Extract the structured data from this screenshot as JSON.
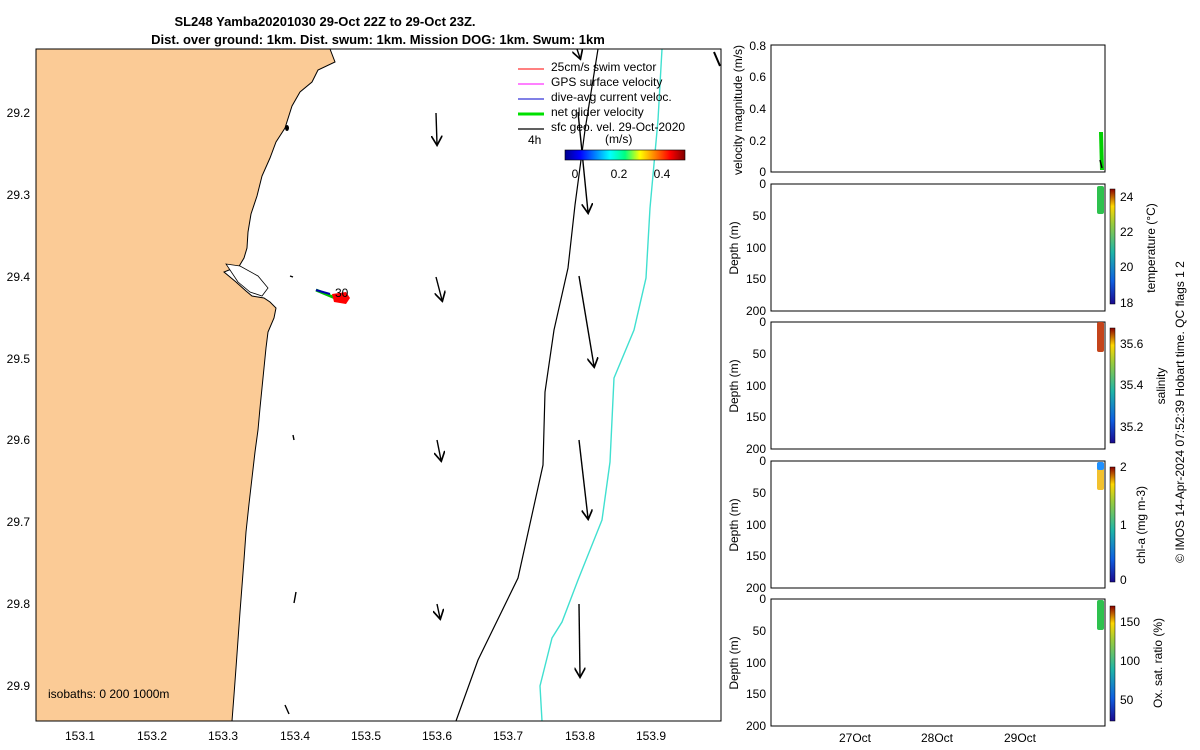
{
  "chart_data": {
    "type": "scatter",
    "title_line1": "SL248 Yamba20201030 29-Oct 22Z to 29-Oct 23Z.",
    "title_line2": "Dist. over ground: 1km. Dist. swum: 1km. Mission DOG: 1km. Swum: 1km",
    "map": {
      "xlim": [
        153.03,
        154.0
      ],
      "ylim": [
        29.94,
        29.12
      ],
      "x_ticks": [
        "153.1",
        "153.2",
        "153.3",
        "153.4",
        "153.5",
        "153.6",
        "153.7",
        "153.8",
        "153.9"
      ],
      "y_ticks": [
        "29.2",
        "29.3",
        "29.4",
        "29.5",
        "29.6",
        "29.7",
        "29.8",
        "29.9"
      ],
      "land_color": "#FBCB96",
      "glider_label": "30",
      "time_label": "4h",
      "isobath_label": "isobaths: 0   200  1000m",
      "legend": [
        {
          "label": "25cm/s swim vector",
          "color": "#ff0000"
        },
        {
          "label": "GPS surface velocity",
          "color": "#ff00ff"
        },
        {
          "label": "dive-avg current veloc.",
          "color": "#0000cc"
        },
        {
          "label": "net glider velocity",
          "color": "#00e000"
        },
        {
          "label": "sfc geo. vel. 29-Oct-2020",
          "color": "#000000"
        }
      ],
      "colorbar_title": "(m/s)",
      "colorbar_ticks": [
        "0",
        "0.2",
        "0.4"
      ],
      "isobath_200_color": "#000000",
      "isobath_1000_color": "#40E0D0"
    },
    "panels": [
      {
        "ylabel": "velocity magnitude (m/s)",
        "yticks": [
          "0",
          "0.2",
          "0.4",
          "0.6",
          "0.8"
        ]
      },
      {
        "ylabel": "Depth (m)",
        "yticks": [
          "0",
          "50",
          "100",
          "150",
          "200"
        ],
        "cb_label": "temperature (°C)",
        "cb_ticks": [
          "24",
          "22",
          "20",
          "18"
        ]
      },
      {
        "ylabel": "Depth (m)",
        "yticks": [
          "0",
          "50",
          "100",
          "150",
          "200"
        ],
        "cb_label": "salinity",
        "cb_ticks": [
          "35.6",
          "35.4",
          "35.2"
        ]
      },
      {
        "ylabel": "Depth (m)",
        "yticks": [
          "0",
          "50",
          "100",
          "150",
          "200"
        ],
        "cb_label": "chl-a (mg m-3)",
        "cb_ticks": [
          "2",
          "1",
          "0"
        ]
      },
      {
        "ylabel": "Depth (m)",
        "yticks": [
          "0",
          "50",
          "100",
          "150",
          "200"
        ],
        "cb_label": "Ox. sat. ratio (%)",
        "cb_ticks": [
          "150",
          "100",
          "50"
        ]
      }
    ],
    "x_time_ticks": [
      "27Oct",
      "28Oct",
      "29Oct"
    ],
    "footer": "© IMOS 14-Apr-2024 07:52:39 Hobart time. QC flags 1  2"
  }
}
